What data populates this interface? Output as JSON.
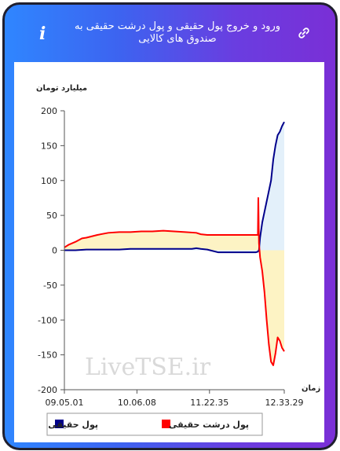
{
  "header": {
    "title": "ورود و خروج پول حقیقی و پول درشت حقیقی به صندوق های کالایی",
    "info_icon": "info-icon",
    "link_icon": "link-icon",
    "info_symbol": "i"
  },
  "watermark": "LiveTSE.ir",
  "chart_data": {
    "type": "line",
    "ylabel": "میلیارد تومان",
    "xlabel": "زمان",
    "ylim": [
      -200,
      200
    ],
    "yticks": [
      -200,
      -150,
      -100,
      -50,
      0,
      50,
      100,
      150,
      200
    ],
    "xticks": [
      "09.05.01",
      "10.06.08",
      "11.22.35",
      "12.33.29"
    ],
    "xtick_positions": [
      0,
      0.33,
      0.66,
      1.0
    ],
    "grid": false,
    "legend_position": "bottom",
    "series": [
      {
        "name": "پول حقیقی",
        "color": "#00008b",
        "fill": "#e3f0fa",
        "x": [
          0,
          0.05,
          0.1,
          0.15,
          0.2,
          0.25,
          0.3,
          0.35,
          0.4,
          0.45,
          0.5,
          0.55,
          0.58,
          0.6,
          0.62,
          0.65,
          0.7,
          0.75,
          0.8,
          0.85,
          0.87,
          0.88,
          0.885,
          0.89,
          0.9,
          0.91,
          0.92,
          0.93,
          0.94,
          0.95,
          0.96,
          0.97,
          0.98,
          0.99,
          1.0
        ],
        "values": [
          0,
          0,
          1,
          1,
          1,
          1,
          2,
          2,
          2,
          2,
          2,
          2,
          2,
          3,
          2,
          1,
          -3,
          -3,
          -3,
          -3,
          -3,
          -2,
          0,
          18,
          40,
          55,
          70,
          85,
          100,
          130,
          150,
          165,
          170,
          178,
          184
        ]
      },
      {
        "name": "پول درشت حقیقی",
        "color": "#ff0000",
        "fill": "#fdf3c4",
        "x": [
          0,
          0.02,
          0.05,
          0.08,
          0.1,
          0.15,
          0.2,
          0.25,
          0.3,
          0.35,
          0.4,
          0.45,
          0.5,
          0.55,
          0.6,
          0.62,
          0.65,
          0.7,
          0.75,
          0.8,
          0.85,
          0.87,
          0.88,
          0.882,
          0.885,
          0.89,
          0.9,
          0.91,
          0.92,
          0.93,
          0.94,
          0.95,
          0.96,
          0.97,
          0.98,
          0.99,
          1.0
        ],
        "values": [
          4,
          8,
          12,
          17,
          18,
          22,
          25,
          26,
          26,
          27,
          27,
          28,
          27,
          26,
          25,
          23,
          22,
          22,
          22,
          22,
          22,
          22,
          22,
          75,
          10,
          -10,
          -30,
          -60,
          -100,
          -135,
          -160,
          -165,
          -148,
          -125,
          -130,
          -140,
          -145
        ]
      }
    ]
  }
}
